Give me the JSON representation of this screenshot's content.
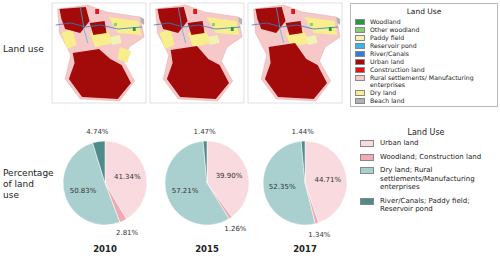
{
  "maps": {
    "row_label": "Land use",
    "legend_title": "Land Use",
    "legend": [
      {
        "label": "Woodland",
        "color": "#1e9b3c"
      },
      {
        "label": "Other woodland",
        "color": "#86cf74"
      },
      {
        "label": "Paddy field",
        "color": "#f1f2b4"
      },
      {
        "label": "Reservoir pond",
        "color": "#38b6e6"
      },
      {
        "label": "River/Canals",
        "color": "#2c7fd2"
      },
      {
        "label": "Urban land",
        "color": "#a30b0b"
      },
      {
        "label": "Construction land",
        "color": "#e2141c"
      },
      {
        "label": "Rural settlements/ Manufacturing enterprises",
        "color": "#f6c8c8"
      },
      {
        "label": "Dry land",
        "color": "#f8ee8c"
      },
      {
        "label": "Beach land",
        "color": "#b2b2b2"
      }
    ]
  },
  "chart_data": {
    "type": "pie",
    "title": "Percentage of land use",
    "legend_title": "Land Use",
    "categories": [
      "Urban land",
      "Woodland; Construction land",
      "Dry land; Rural settlements/Manufacturing enterprises",
      "River/Canals; Paddy field; Reservoir pond"
    ],
    "colors": [
      "#f9dadf",
      "#f1a9b3",
      "#a9d0cf",
      "#4f8b8a"
    ],
    "data_labels": true,
    "series": [
      {
        "name": "2010",
        "values": [
          41.34,
          2.81,
          50.83,
          4.74
        ],
        "value_labels": [
          "41.34%",
          "2.81%",
          "50.83%",
          "4.74%"
        ]
      },
      {
        "name": "2015",
        "values": [
          39.9,
          1.26,
          57.21,
          1.47
        ],
        "value_labels": [
          "39.90%",
          "1.26%",
          "57.21%",
          "1.47%"
        ]
      },
      {
        "name": "2017",
        "values": [
          44.71,
          1.34,
          52.35,
          1.44
        ],
        "value_labels": [
          "44.71%",
          "1.34%",
          "52.35%",
          "1.44%"
        ]
      }
    ]
  }
}
